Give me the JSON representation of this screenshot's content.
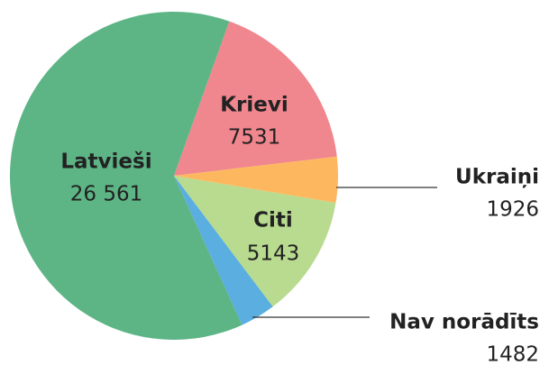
{
  "chart_data": {
    "type": "pie",
    "categories": [
      "Latvieši",
      "Krievi",
      "Ukraiņi",
      "Citi",
      "Nav norādīts"
    ],
    "values": [
      26561,
      7531,
      1926,
      5143,
      1482
    ],
    "value_labels": [
      "26 561",
      "7531",
      "1926",
      "5143",
      "1482"
    ],
    "colors": [
      "#5db585",
      "#f0868e",
      "#fdb85f",
      "#b8db8f",
      "#5aaee0"
    ]
  }
}
